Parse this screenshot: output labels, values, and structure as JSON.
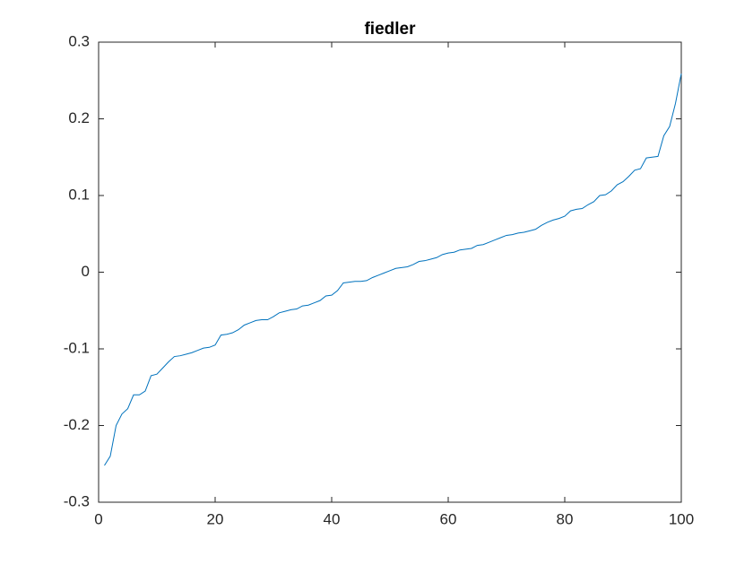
{
  "chart_data": {
    "type": "line",
    "title": "fiedler",
    "x": [
      1,
      2,
      3,
      4,
      5,
      6,
      7,
      8,
      9,
      10,
      11,
      12,
      13,
      14,
      15,
      16,
      17,
      18,
      19,
      20,
      21,
      22,
      23,
      24,
      25,
      26,
      27,
      28,
      29,
      30,
      31,
      32,
      33,
      34,
      35,
      36,
      37,
      38,
      39,
      40,
      41,
      42,
      43,
      44,
      45,
      46,
      47,
      48,
      49,
      50,
      51,
      52,
      53,
      54,
      55,
      56,
      57,
      58,
      59,
      60,
      61,
      62,
      63,
      64,
      65,
      66,
      67,
      68,
      69,
      70,
      71,
      72,
      73,
      74,
      75,
      76,
      77,
      78,
      79,
      80,
      81,
      82,
      83,
      84,
      85,
      86,
      87,
      88,
      89,
      90,
      91,
      92,
      93,
      94,
      95,
      96,
      97,
      98,
      99,
      100
    ],
    "series": [
      {
        "color": "#0072bd",
        "values": [
          -0.252,
          -0.24,
          -0.2,
          -0.185,
          -0.178,
          -0.16,
          -0.16,
          -0.155,
          -0.135,
          -0.133,
          -0.125,
          -0.117,
          -0.11,
          -0.109,
          -0.107,
          -0.105,
          -0.102,
          -0.099,
          -0.098,
          -0.095,
          -0.082,
          -0.081,
          -0.079,
          -0.075,
          -0.069,
          -0.066,
          -0.063,
          -0.062,
          -0.062,
          -0.058,
          -0.053,
          -0.051,
          -0.049,
          -0.048,
          -0.044,
          -0.043,
          -0.04,
          -0.037,
          -0.031,
          -0.03,
          -0.024,
          -0.014,
          -0.013,
          -0.012,
          -0.012,
          -0.011,
          -0.007,
          -0.004,
          -0.001,
          0.002,
          0.005,
          0.006,
          0.007,
          0.01,
          0.014,
          0.015,
          0.017,
          0.019,
          0.023,
          0.025,
          0.026,
          0.029,
          0.03,
          0.031,
          0.035,
          0.036,
          0.039,
          0.042,
          0.045,
          0.048,
          0.049,
          0.051,
          0.052,
          0.054,
          0.056,
          0.061,
          0.065,
          0.068,
          0.07,
          0.073,
          0.08,
          0.082,
          0.083,
          0.088,
          0.092,
          0.1,
          0.101,
          0.106,
          0.114,
          0.118,
          0.125,
          0.133,
          0.135,
          0.149,
          0.15,
          0.151,
          0.178,
          0.19,
          0.22,
          0.259
        ]
      }
    ],
    "xlim": [
      0,
      100
    ],
    "xticks": [
      0,
      20,
      40,
      60,
      80,
      100
    ],
    "ylim": [
      -0.3,
      0.3
    ],
    "yticks": [
      -0.3,
      -0.2,
      -0.1,
      0,
      0.1,
      0.2,
      0.3
    ]
  }
}
